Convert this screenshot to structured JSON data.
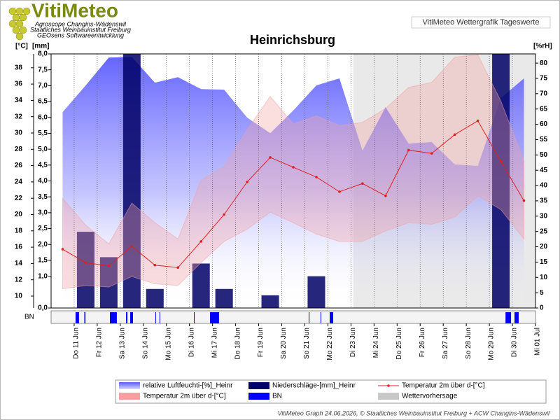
{
  "header": {
    "logo": "VitiMeteo",
    "lines": [
      "Agroscope Changins-Wädenswil",
      "Staatliches Weinbauinstitut Freiburg",
      "GEOsens Softwareentwicklung"
    ],
    "badge": "VitiMeteo Wettergrafik Tageswerte"
  },
  "chart_data": {
    "type": "combo",
    "title": "Heinrichsburg",
    "y_label": "[°C]",
    "y3_label": "[mm]",
    "y2_label": "[%rH]",
    "x": [
      0.5,
      1.5,
      2.5,
      3.5,
      4.5,
      5.5,
      6.5,
      7.5,
      8.5,
      9.5,
      10.5,
      11.5,
      12.5,
      13.5,
      14.5,
      15.5,
      16.5,
      17.5,
      18.5,
      19.5,
      20.5
    ],
    "xlim": [
      0,
      21
    ],
    "xticks": [
      {
        "value": 1,
        "label": "Do 11 Jun"
      },
      {
        "value": 2,
        "label": "Fr 12 Jun"
      },
      {
        "value": 3,
        "label": "Sa 13 Jun"
      },
      {
        "value": 4,
        "label": "So 14 Jun"
      },
      {
        "value": 5,
        "label": "Mo 15 Jun"
      },
      {
        "value": 6,
        "label": "Di 16 Jun"
      },
      {
        "value": 7,
        "label": "Mi 17 Jun"
      },
      {
        "value": 8,
        "label": "Do 18 Jun"
      },
      {
        "value": 9,
        "label": "Fr 19 Jun"
      },
      {
        "value": 10,
        "label": "Sa 20 Jun"
      },
      {
        "value": 11,
        "label": "So 21 Jun"
      },
      {
        "value": 12,
        "label": "Mo 22 Jun"
      },
      {
        "value": 13,
        "label": "Di 23 Jun"
      },
      {
        "value": 14,
        "label": "Mi 24 Jun"
      },
      {
        "value": 15,
        "label": "Do 25 Jun"
      },
      {
        "value": 16,
        "label": "Fr 26 Jun"
      },
      {
        "value": 17,
        "label": "Sa 27 Jun"
      },
      {
        "value": 18,
        "label": "So 28 Jun"
      },
      {
        "value": 19,
        "label": "Mo 29 Jun"
      },
      {
        "value": 20,
        "label": "Di 30 Jun"
      },
      {
        "value": 21,
        "label": "Mi 01 Jul"
      }
    ],
    "ylim": [
      8.54,
      39.7
    ],
    "yticks": [
      10,
      12,
      14,
      16,
      18,
      20,
      22,
      24,
      26,
      28,
      30,
      32,
      34,
      36,
      38
    ],
    "y3lim": [
      0,
      8
    ],
    "y3ticks": [
      {
        "value": 0,
        "label": "0,0"
      },
      {
        "value": 1,
        "label": "1,0"
      },
      {
        "value": 1.5,
        "label": "1,5"
      },
      {
        "value": 2,
        "label": "2,0"
      },
      {
        "value": 2.5,
        "label": "2,5"
      },
      {
        "value": 3,
        "label": "3,0"
      },
      {
        "value": 3.5,
        "label": "3,5"
      },
      {
        "value": 4,
        "label": "4,0"
      },
      {
        "value": 4.5,
        "label": "4,5"
      },
      {
        "value": 5,
        "label": "5,0"
      },
      {
        "value": 5.5,
        "label": "5,5"
      },
      {
        "value": 6,
        "label": "6,0"
      },
      {
        "value": 6.5,
        "label": "6,5"
      },
      {
        "value": 7,
        "label": "7,0"
      },
      {
        "value": 7.5,
        "label": "7,5"
      },
      {
        "value": 8,
        "label": "8,0"
      }
    ],
    "y2lim": [
      0,
      83
    ],
    "y2ticks": [
      0,
      5,
      10,
      15,
      20,
      25,
      30,
      35,
      40,
      45,
      50,
      55,
      60,
      65,
      70,
      75,
      80
    ],
    "grid": true,
    "series": [
      {
        "name": "relative Luftfeuchti-[%]_Heinr",
        "type": "area",
        "axis": "y2",
        "color": "#5a5aff",
        "values": [
          64,
          72.7,
          81.8,
          82,
          73.6,
          75.4,
          71.5,
          71.3,
          62.2,
          57.1,
          64.5,
          72.7,
          75,
          51.4,
          65.6,
          53.7,
          54.2,
          46.9,
          46.4,
          68.6,
          75
        ]
      },
      {
        "name": "Niederschläge-[mm]_Heinr",
        "type": "bar",
        "axis": "y3",
        "color": "#000066",
        "values": [
          0,
          2.4,
          1.6,
          8,
          0.6,
          0,
          1.4,
          0.6,
          0,
          0.4,
          0,
          1,
          0,
          0,
          0,
          0,
          0,
          0,
          0,
          8,
          0
        ]
      },
      {
        "name": "Temperatur 2m über d-[°C]",
        "type": "line",
        "color": "#e02020",
        "values": [
          15.75,
          14.1,
          13.7,
          16.1,
          13.8,
          13.5,
          16.7,
          20,
          24,
          27,
          25.8,
          24.6,
          22.8,
          23.8,
          22.3,
          27.9,
          27.5,
          29.8,
          31.5,
          26.5,
          21.7
        ]
      },
      {
        "name": "Temperatur 2m über d-[°C]",
        "type": "band",
        "color": "#f4a0a0",
        "high": [
          22,
          18.7,
          16.4,
          21.4,
          19,
          17,
          24.2,
          25.9,
          30.4,
          34.5,
          31.1,
          32.1,
          30.9,
          31.3,
          33,
          35.6,
          36.2,
          39.3,
          39.6,
          33.9,
          26.6
        ],
        "low": [
          10.9,
          11.3,
          11.1,
          12.4,
          11.5,
          11.3,
          14.1,
          16.7,
          18.2,
          20.3,
          19,
          17.6,
          16.7,
          16.7,
          18,
          19,
          18.8,
          19.7,
          22.3,
          20.6,
          17
        ]
      },
      {
        "name": "BN",
        "type": "periods",
        "color": "#0000ff",
        "periods": [
          [
            1.06,
            1.21
          ],
          [
            1.44,
            1.49
          ],
          [
            2.55,
            2.85
          ],
          [
            3.25,
            3.31
          ],
          [
            3.43,
            3.55
          ],
          [
            4.52,
            4.55
          ],
          [
            4.7,
            4.73
          ],
          [
            6.19,
            6.22
          ],
          [
            6.89,
            7.28
          ],
          [
            11.17,
            11.2
          ],
          [
            11.68,
            11.71
          ],
          [
            12.08,
            12.23
          ],
          [
            19.7,
            19.94
          ],
          [
            20.09,
            20.27
          ]
        ]
      },
      {
        "name": "Wettervorhersage",
        "type": "shade",
        "color": "#c8c8c8",
        "range": [
          13.1,
          21
        ]
      }
    ]
  },
  "footer": "VitiMeteo Graph 24.06.2026, © Staatliches Weinbauinstitut Freiburg + ACW Changins-Wädenswil"
}
